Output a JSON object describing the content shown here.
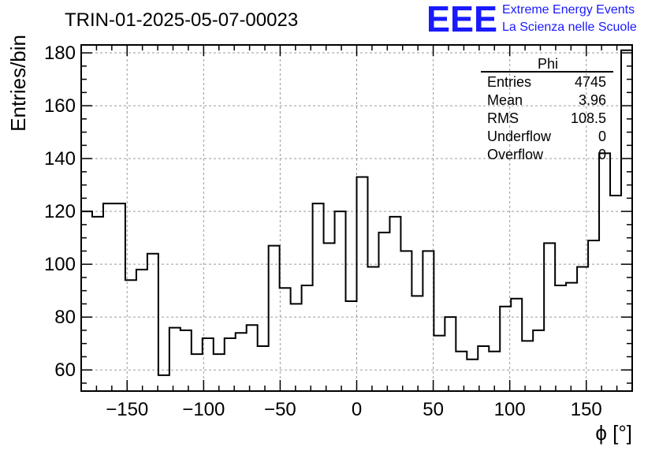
{
  "chart_data": {
    "type": "bar",
    "title": "TRIN-01-2025-05-07-00023",
    "xlabel": "ϕ [°]",
    "ylabel": "Entries/bin",
    "xlim": [
      -180,
      180
    ],
    "ylim": [
      52,
      183
    ],
    "bin_width": 7.2,
    "x_ticks": [
      -150,
      -100,
      -50,
      0,
      50,
      100,
      150
    ],
    "x_tick_labels": [
      "−150",
      "−100",
      "−50",
      "0",
      "50",
      "100",
      "150"
    ],
    "y_ticks": [
      60,
      80,
      100,
      120,
      140,
      160,
      180
    ],
    "y_tick_labels": [
      "60",
      "80",
      "100",
      "120",
      "140",
      "160",
      "180"
    ],
    "grid": true,
    "values": [
      120,
      118,
      123,
      123,
      94,
      98,
      104,
      58,
      76,
      75,
      66,
      72,
      66,
      72,
      74,
      77,
      69,
      107,
      91,
      85,
      92,
      123,
      108,
      120,
      86,
      133,
      99,
      112,
      118,
      105,
      88,
      105,
      73,
      80,
      67,
      64,
      69,
      67,
      84,
      87,
      71,
      75,
      108,
      92,
      93,
      99,
      109,
      142,
      126,
      181
    ],
    "stats_box": {
      "title": "Phi",
      "rows": [
        {
          "label": "Entries",
          "value": "4745"
        },
        {
          "label": "Mean",
          "value": "3.96"
        },
        {
          "label": "RMS",
          "value": "108.5"
        },
        {
          "label": "Underflow",
          "value": "0"
        },
        {
          "label": "Overflow",
          "value": "0"
        }
      ]
    }
  },
  "logo": {
    "text": "EEE",
    "line1": "Extreme Energy Events",
    "line2": "La Scienza nelle Scuole"
  }
}
